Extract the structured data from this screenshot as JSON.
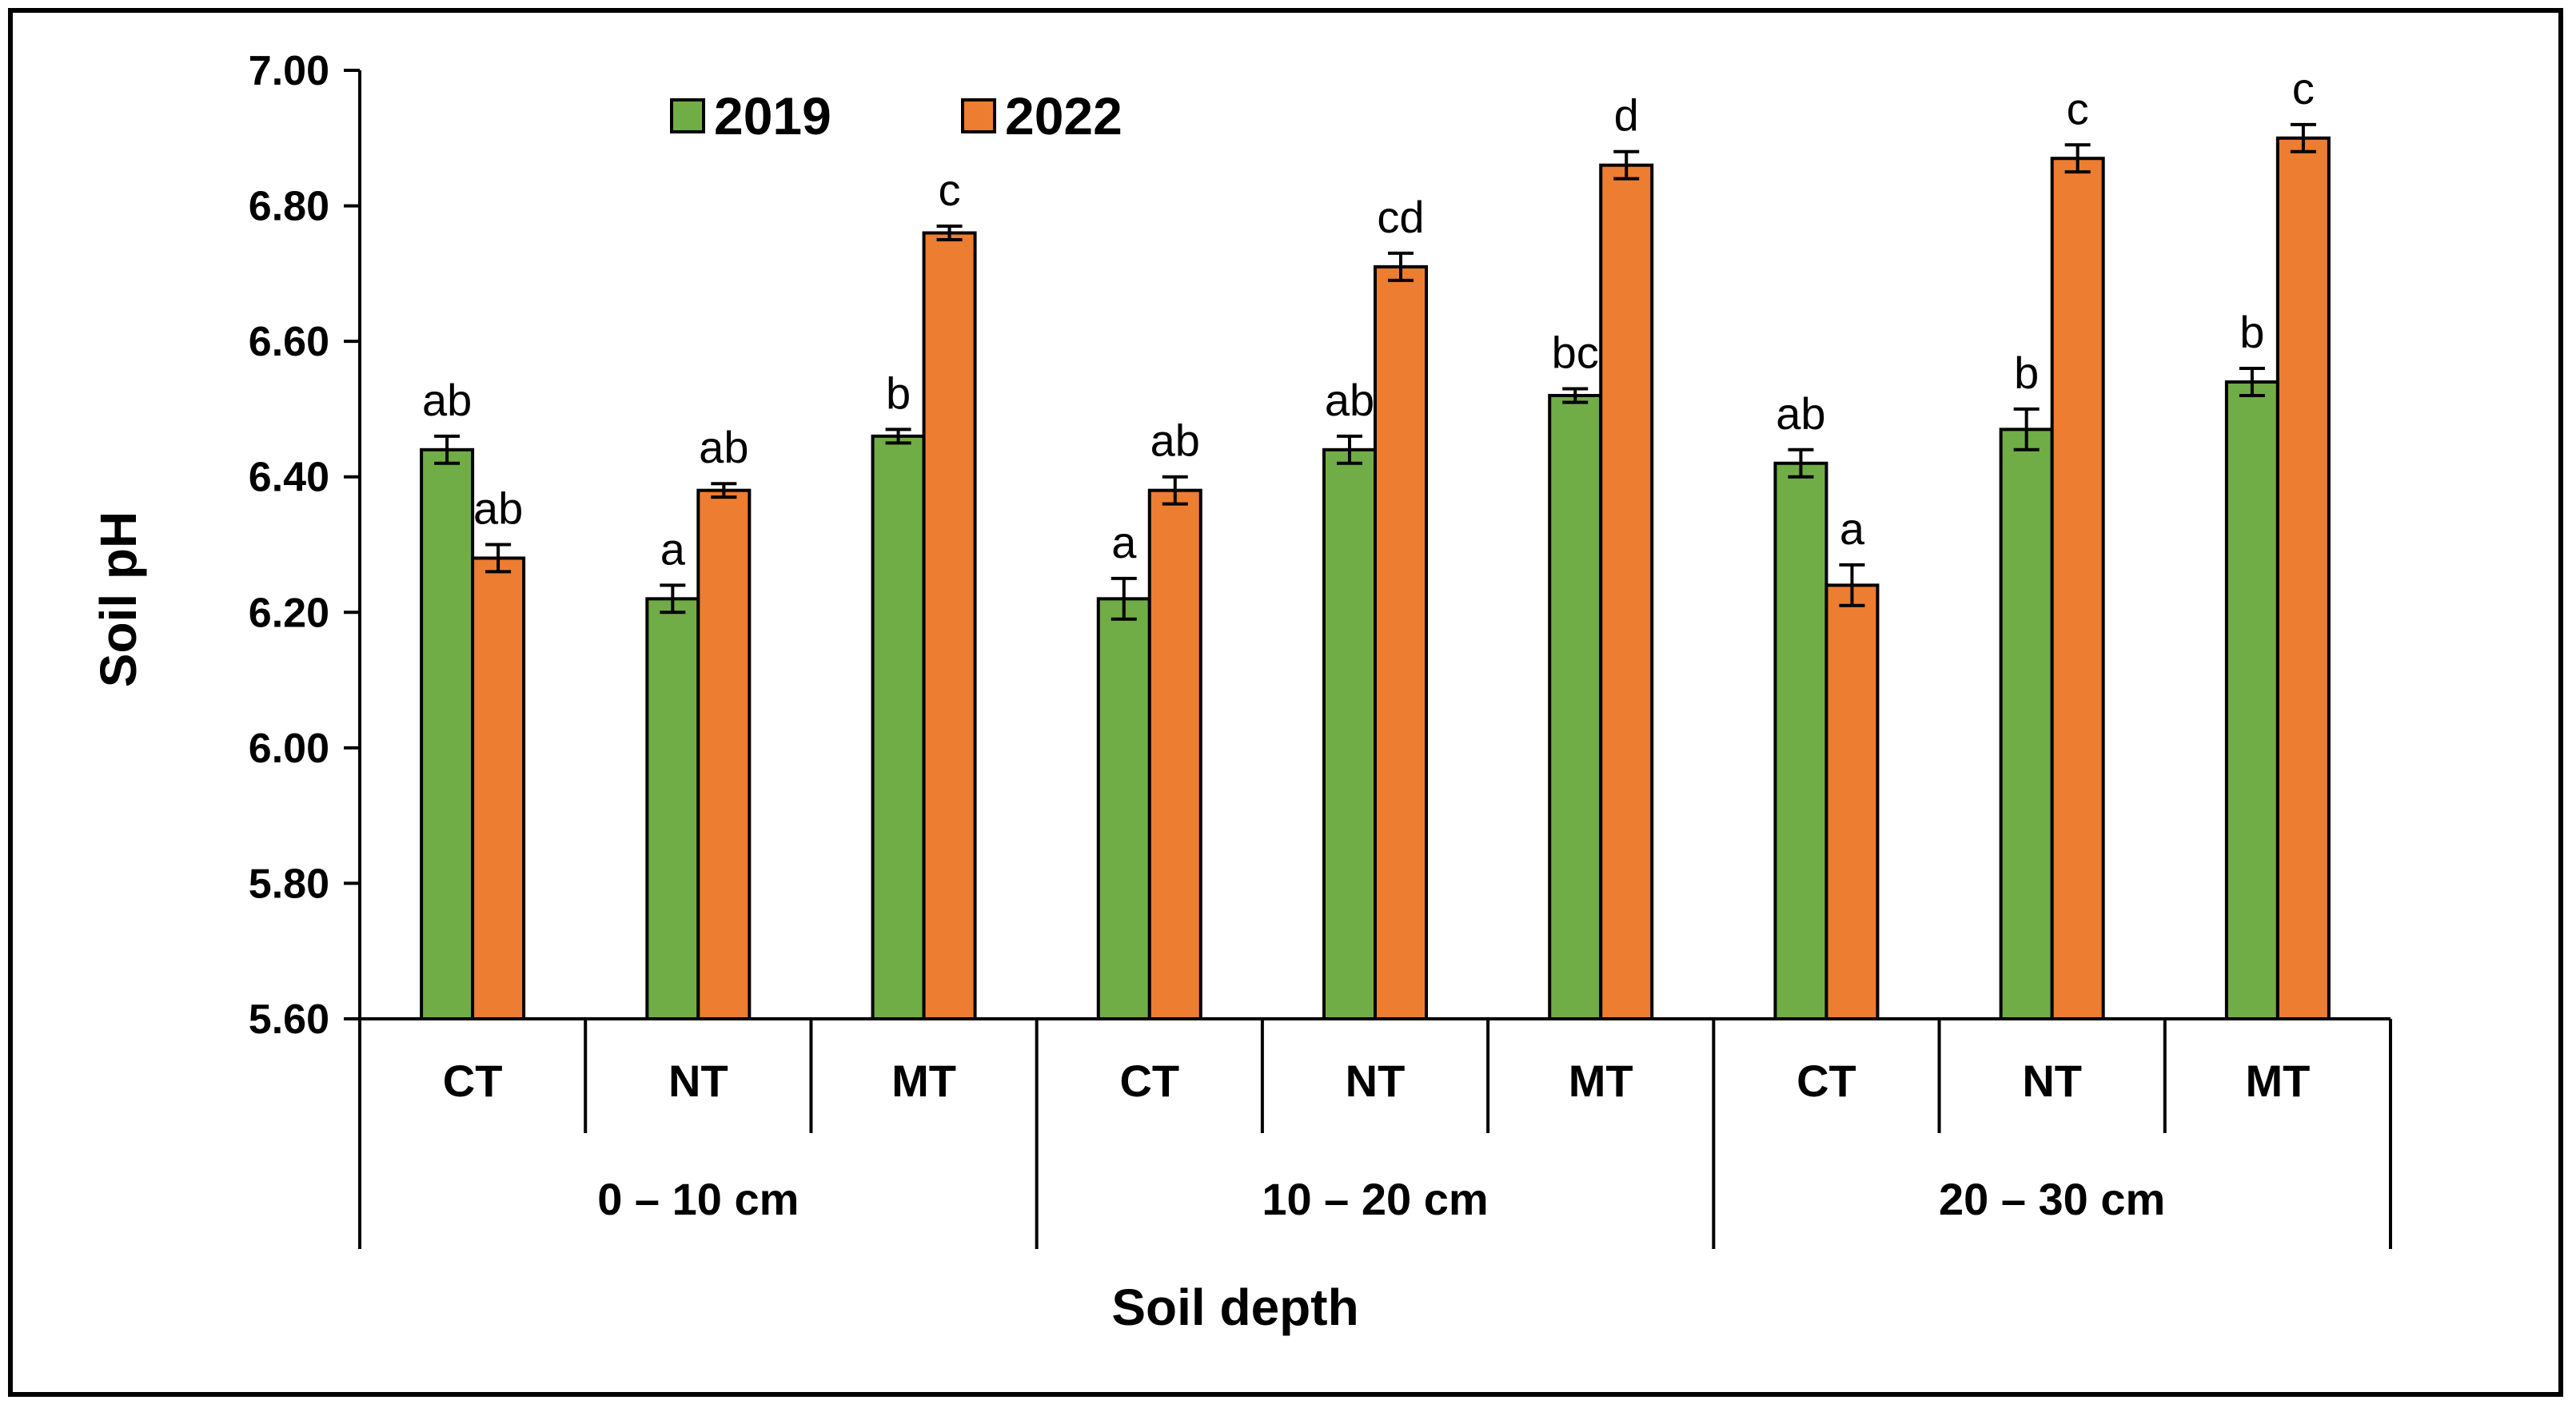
{
  "chart_data": {
    "type": "bar",
    "title": "",
    "ylabel": "Soil pH",
    "xlabel": "Soil depth",
    "ylim": [
      5.6,
      7.0
    ],
    "yticks": [
      "5.60",
      "5.80",
      "6.00",
      "6.20",
      "6.40",
      "6.60",
      "6.80",
      "7.00"
    ],
    "groups": [
      {
        "label": "0 – 10 cm",
        "categories": [
          "CT",
          "NT",
          "MT"
        ]
      },
      {
        "label": "10 – 20 cm",
        "categories": [
          "CT",
          "NT",
          "MT"
        ]
      },
      {
        "label": "20 – 30 cm",
        "categories": [
          "CT",
          "NT",
          "MT"
        ]
      }
    ],
    "legend_position": "top-left",
    "series": [
      {
        "name": "2019",
        "color": "#70AD47",
        "values": [
          6.44,
          6.22,
          6.46,
          6.22,
          6.44,
          6.52,
          6.42,
          6.47,
          6.54
        ],
        "errors": [
          0.02,
          0.02,
          0.01,
          0.03,
          0.02,
          0.01,
          0.02,
          0.03,
          0.02
        ],
        "letters": [
          "ab",
          "a",
          "b",
          "a",
          "ab",
          "bc",
          "ab",
          "b",
          "b"
        ]
      },
      {
        "name": "2022",
        "color": "#ED7D31",
        "values": [
          6.28,
          6.38,
          6.76,
          6.38,
          6.71,
          6.86,
          6.24,
          6.87,
          6.9
        ],
        "errors": [
          0.02,
          0.01,
          0.01,
          0.02,
          0.02,
          0.02,
          0.03,
          0.02,
          0.02
        ],
        "letters": [
          "ab",
          "ab",
          "c",
          "ab",
          "cd",
          "d",
          "a",
          "c",
          "c"
        ]
      }
    ]
  }
}
